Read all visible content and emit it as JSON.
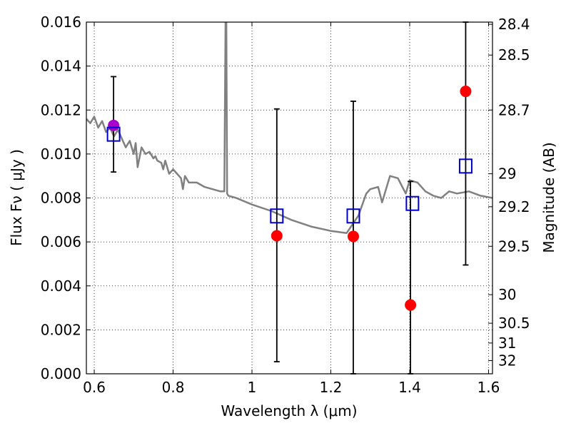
{
  "chart_data": {
    "type": "scatter",
    "xlabel": "Wavelength  λ (μm)",
    "ylabel": "Flux  Fν  ( μJy )",
    "ylabel_right": "Magnitude (AB)",
    "xlim": [
      0.58,
      1.61
    ],
    "ylim": [
      0.0,
      0.016
    ],
    "grid": true,
    "x_ticks": [
      {
        "value": 0.6,
        "label": "0.6"
      },
      {
        "value": 0.8,
        "label": "0.8"
      },
      {
        "value": 1.0,
        "label": "1"
      },
      {
        "value": 1.2,
        "label": "1.2"
      },
      {
        "value": 1.4,
        "label": "1.4"
      },
      {
        "value": 1.6,
        "label": "1.6"
      }
    ],
    "y_ticks": [
      {
        "value": 0.0,
        "label": "0.000"
      },
      {
        "value": 0.002,
        "label": "0.002"
      },
      {
        "value": 0.004,
        "label": "0.004"
      },
      {
        "value": 0.006,
        "label": "0.006"
      },
      {
        "value": 0.008,
        "label": "0.008"
      },
      {
        "value": 0.01,
        "label": "0.010"
      },
      {
        "value": 0.012,
        "label": "0.012"
      },
      {
        "value": 0.014,
        "label": "0.014"
      },
      {
        "value": 0.016,
        "label": "0.016"
      }
    ],
    "right_ticks": [
      {
        "flux": 0.0159,
        "label": "28.4"
      },
      {
        "flux": 0.0145,
        "label": "28.5"
      },
      {
        "flux": 0.012,
        "label": "28.7"
      },
      {
        "flux": 0.0091,
        "label": "29"
      },
      {
        "flux": 0.0076,
        "label": "29.2"
      },
      {
        "flux": 0.0058,
        "label": "29.5"
      },
      {
        "flux": 0.0036,
        "label": "30"
      },
      {
        "flux": 0.0023,
        "label": "30.5"
      },
      {
        "flux": 0.0014,
        "label": "31"
      },
      {
        "flux": 0.0006,
        "label": "32"
      }
    ],
    "model_curve": {
      "color": "#808080",
      "x": [
        0.58,
        0.59,
        0.6,
        0.61,
        0.62,
        0.63,
        0.64,
        0.65,
        0.66,
        0.67,
        0.68,
        0.69,
        0.7,
        0.705,
        0.71,
        0.72,
        0.73,
        0.74,
        0.75,
        0.755,
        0.76,
        0.77,
        0.775,
        0.78,
        0.79,
        0.8,
        0.81,
        0.82,
        0.825,
        0.83,
        0.84,
        0.86,
        0.88,
        0.9,
        0.92,
        0.93,
        0.933,
        0.935,
        0.937,
        0.94,
        0.96,
        1.0,
        1.05,
        1.1,
        1.15,
        1.2,
        1.24,
        1.27,
        1.29,
        1.3,
        1.32,
        1.33,
        1.35,
        1.37,
        1.39,
        1.4,
        1.42,
        1.44,
        1.46,
        1.48,
        1.5,
        1.52,
        1.55,
        1.58,
        1.61
      ],
      "y": [
        0.0116,
        0.0114,
        0.0117,
        0.0112,
        0.0115,
        0.011,
        0.0112,
        0.0108,
        0.0111,
        0.0107,
        0.0103,
        0.0106,
        0.01,
        0.0105,
        0.0094,
        0.0103,
        0.01,
        0.0101,
        0.0098,
        0.0099,
        0.0097,
        0.0096,
        0.0093,
        0.0097,
        0.0091,
        0.0093,
        0.0091,
        0.0089,
        0.0084,
        0.009,
        0.0087,
        0.0087,
        0.0085,
        0.0084,
        0.0083,
        0.0083,
        0.016,
        0.016,
        0.0082,
        0.0081,
        0.008,
        0.0077,
        0.0074,
        0.007,
        0.0067,
        0.0065,
        0.0064,
        0.0072,
        0.0082,
        0.0084,
        0.0085,
        0.0078,
        0.009,
        0.0089,
        0.0082,
        0.0088,
        0.0087,
        0.0083,
        0.0081,
        0.008,
        0.0083,
        0.0082,
        0.0083,
        0.0081,
        0.008
      ]
    },
    "series": [
      {
        "marker": "open-square",
        "color": "#0000cc",
        "points": [
          {
            "x": 0.649,
            "y": 0.0109
          },
          {
            "x": 1.063,
            "y": 0.00718
          },
          {
            "x": 1.257,
            "y": 0.00718
          },
          {
            "x": 1.407,
            "y": 0.00775
          },
          {
            "x": 1.542,
            "y": 0.00945
          }
        ]
      },
      {
        "marker": "filled-circle",
        "color": "#ff0000",
        "points": [
          {
            "x": 1.063,
            "y": 0.00628,
            "err": [
              0.00055,
              0.01205
            ]
          },
          {
            "x": 1.257,
            "y": 0.00625,
            "err": [
              0.0,
              0.0124
            ]
          },
          {
            "x": 1.402,
            "y": 0.00313,
            "err": [
              0.0,
              0.00875
            ]
          },
          {
            "x": 1.542,
            "y": 0.01285,
            "err": [
              0.00495,
              0.016
            ]
          }
        ]
      },
      {
        "marker": "filled-circle",
        "color": "#aa00cc",
        "points": [
          {
            "x": 0.649,
            "y": 0.0113,
            "err": [
              0.00918,
              0.01352
            ]
          }
        ]
      }
    ]
  }
}
